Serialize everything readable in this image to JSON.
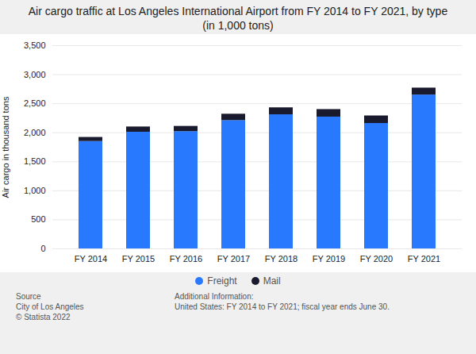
{
  "chart_data": {
    "type": "bar",
    "stacked": true,
    "title": "Air cargo traffic at Los Angeles International Airport from FY 2014 to FY 2021, by type\n(in 1,000 tons)",
    "ylabel": "Air cargo in thousand tons",
    "categories": [
      "FY 2014",
      "FY 2015",
      "FY 2016",
      "FY 2017",
      "FY 2018",
      "FY 2019",
      "FY 2020",
      "FY 2021"
    ],
    "series": [
      {
        "name": "Freight",
        "color": "#2979FF",
        "values": [
          1850,
          2010,
          2020,
          2210,
          2310,
          2270,
          2160,
          2650
        ]
      },
      {
        "name": "Mail",
        "color": "#1a1a2e",
        "values": [
          70,
          90,
          90,
          110,
          120,
          130,
          130,
          120
        ]
      }
    ],
    "ylim": [
      0,
      3500
    ],
    "yticks": [
      0,
      500,
      {
        "value": 1000,
        "label": "1,000"
      },
      {
        "value": 1500,
        "label": "1,500"
      },
      {
        "value": 2000,
        "label": "2,000"
      },
      {
        "value": 2500,
        "label": "2,500"
      },
      {
        "value": 3000,
        "label": "3,000"
      },
      {
        "value": 3500,
        "label": "3,500"
      }
    ],
    "grid": true,
    "legend": "bottom",
    "annotations": [
      "Source\nCity of Los Angeles\n© Statista 2022",
      "Additional Information:\nUnited States: FY 2014 to FY 2021; fiscal year ends June 30."
    ]
  }
}
